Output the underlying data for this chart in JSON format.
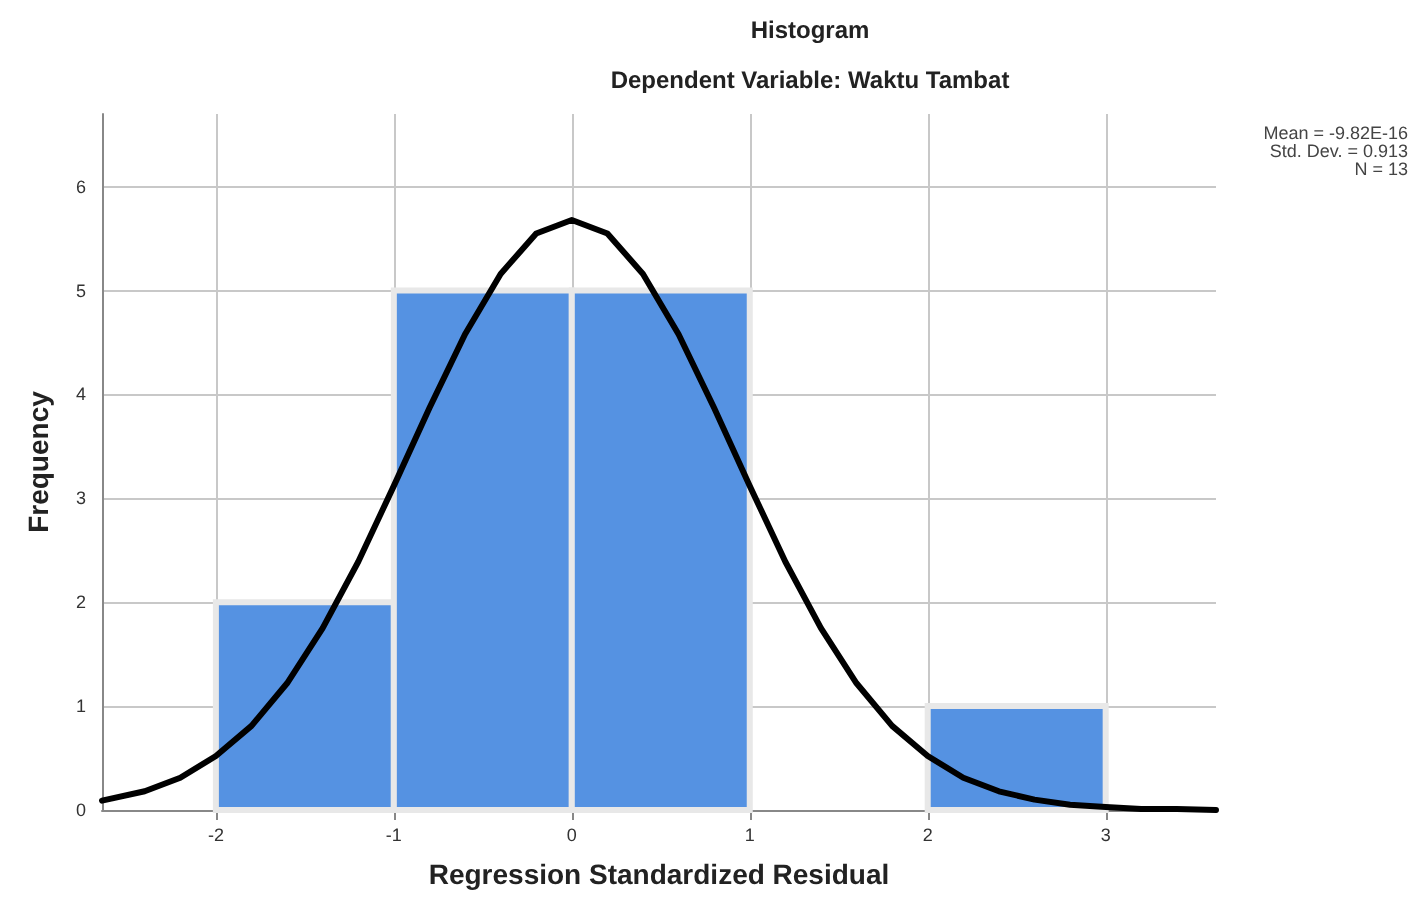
{
  "chart_data": {
    "type": "histogram",
    "title": "Histogram",
    "subtitle": "Dependent Variable: Waktu Tambat",
    "xlabel": "Regression Standardized Residual",
    "ylabel": "Frequency",
    "bins": [
      -2,
      -1,
      0,
      1,
      2,
      3
    ],
    "values": [
      2,
      5,
      5,
      0,
      1
    ],
    "color": "#5592e2",
    "series": [
      {
        "type": "line",
        "color": "#000000",
        "x": [
          -2.64,
          -2.4,
          -2.2,
          -2.0,
          -1.8,
          -1.6,
          -1.4,
          -1.2,
          -1.0,
          -0.8,
          -0.6,
          -0.4,
          -0.2,
          0,
          0.2,
          0.4,
          0.6,
          0.8,
          1.0,
          1.2,
          1.4,
          1.6,
          1.8,
          2.0,
          2.2,
          2.4,
          2.6,
          2.8,
          3.0,
          3.2,
          3.4,
          3.62
        ],
        "values": [
          0.09,
          0.18,
          0.31,
          0.52,
          0.81,
          1.22,
          1.75,
          2.39,
          3.12,
          3.87,
          4.58,
          5.16,
          5.55,
          5.68,
          5.55,
          5.16,
          4.58,
          3.87,
          3.12,
          2.39,
          1.75,
          1.22,
          0.81,
          0.52,
          0.31,
          0.18,
          0.1,
          0.05,
          0.03,
          0.01,
          0.01,
          0
        ]
      }
    ],
    "annotations": [
      "Mean = -9.82E-16",
      "Std. Dev. = 0.913",
      "N = 13"
    ],
    "xlim": [
      -2.64,
      3.62
    ],
    "xticks": [
      -2,
      -1,
      0,
      1,
      2,
      3
    ],
    "ylim": [
      0,
      6.7
    ],
    "yticks": [
      0,
      1,
      2,
      3,
      4,
      5,
      6
    ],
    "grid": true,
    "marker": "none",
    "line_style": "solid"
  }
}
